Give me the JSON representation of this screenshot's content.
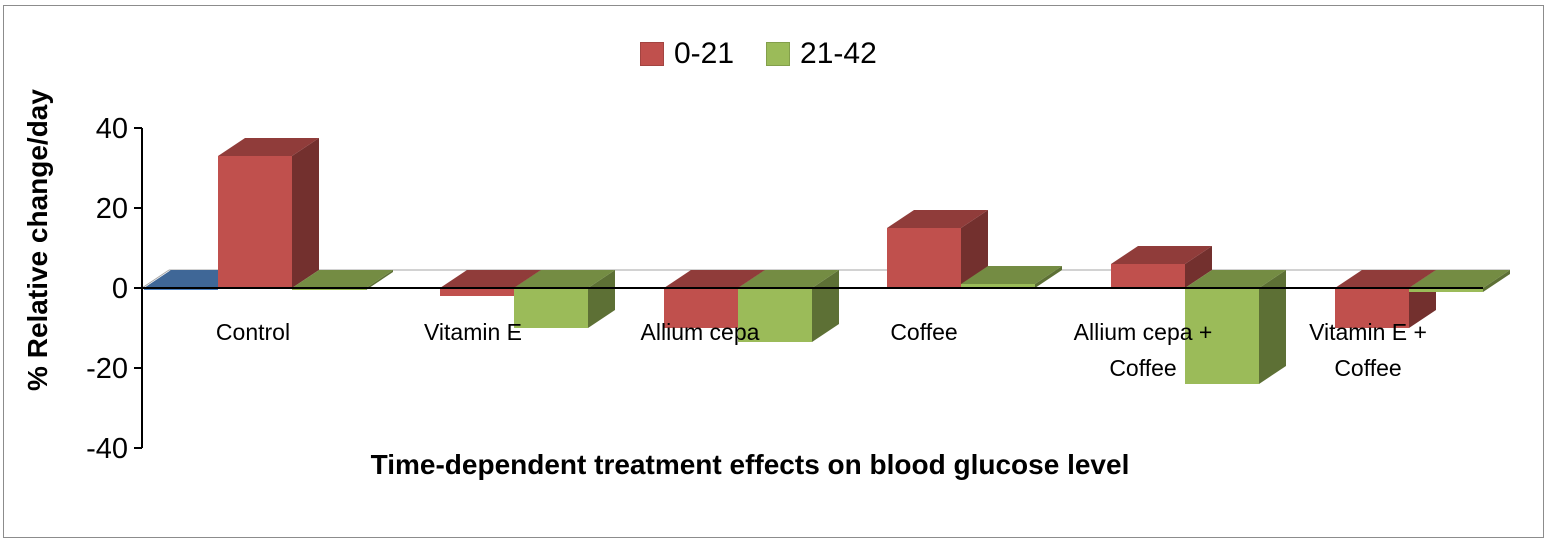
{
  "chart_data": {
    "type": "bar",
    "style": "3d-clustered-column",
    "title": "",
    "xlabel": "Time-dependent treatment effects on blood glucose level",
    "ylabel": "% Relative change/day",
    "ylim": [
      -40,
      40
    ],
    "yticks": [
      "40",
      "20",
      "0",
      "-20",
      "-40"
    ],
    "categories": [
      "Control",
      "Vitamin E",
      "Allium cepa",
      "Coffee",
      "Allium cepa + Coffee",
      "Vitamin E + Coffee"
    ],
    "category_lines": [
      [
        "Control"
      ],
      [
        "Vitamin E"
      ],
      [
        "Allium cepa"
      ],
      [
        "Coffee"
      ],
      [
        "Allium cepa +",
        "Coffee"
      ],
      [
        "Vitamin E +",
        "Coffee"
      ]
    ],
    "series": [
      {
        "name": "0-21",
        "color": "#c0504d",
        "values": [
          33,
          -2,
          -10,
          15,
          6,
          -10
        ]
      },
      {
        "name": "21-42",
        "color": "#9bbb59",
        "values": [
          0,
          -10,
          -13.5,
          1,
          -24,
          -1
        ]
      }
    ],
    "extra_marks": [
      {
        "category_index": 0,
        "color": "#4f81bd",
        "value": 0
      }
    ],
    "legend_position": "top",
    "grid": false
  }
}
